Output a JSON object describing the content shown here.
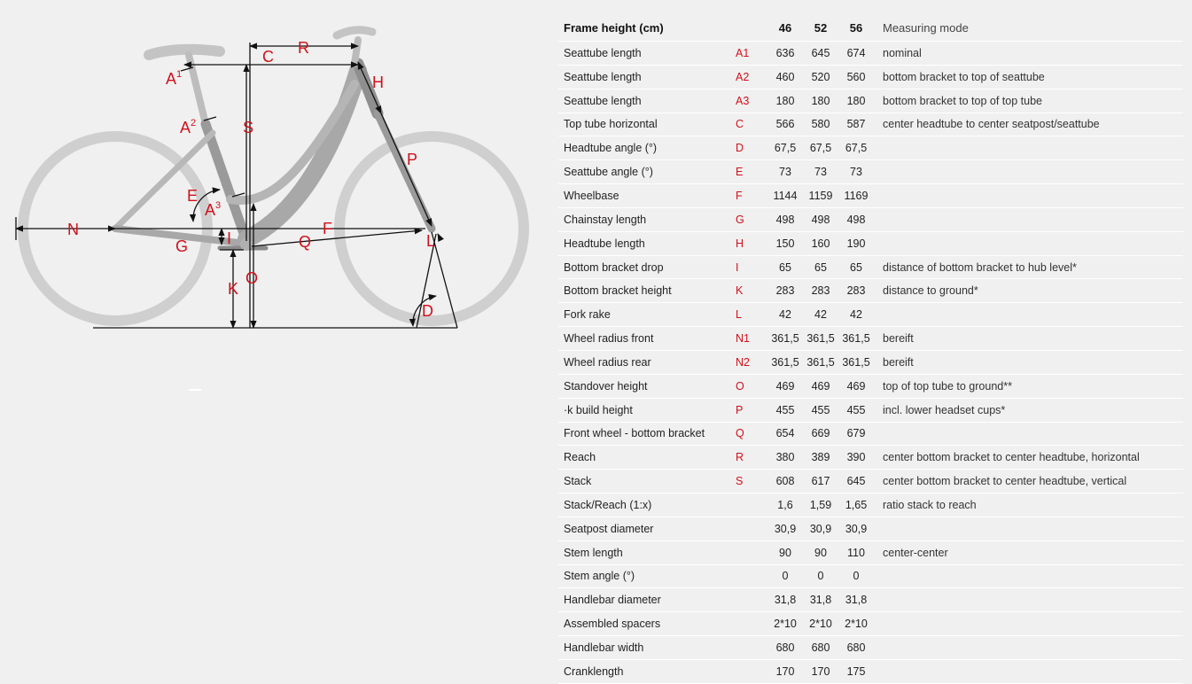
{
  "diagram": {
    "labels": {
      "A1": "A",
      "A1_sup": "1",
      "A2": "A",
      "A2_sup": "2",
      "A3": "A",
      "A3_sup": "3",
      "C": "C",
      "R": "R",
      "H": "H",
      "S": "S",
      "P": "P",
      "E": "E",
      "N": "N",
      "F": "F",
      "G": "G",
      "I": "I",
      "Q": "Q",
      "L": "L",
      "K": "K",
      "O": "O",
      "D": "D"
    },
    "colors": {
      "accent": "#d0101a",
      "frame": "#a6a6a6",
      "wheel": "#cfcfcf",
      "dim_line": "#111111"
    }
  },
  "table": {
    "header": {
      "title": "Frame height (cm)",
      "sizes": [
        "46",
        "52",
        "56"
      ],
      "mode": "Measuring mode"
    },
    "rows": [
      {
        "name": "Seattube length",
        "code": "A1",
        "v": [
          "636",
          "645",
          "674"
        ],
        "desc": "nominal"
      },
      {
        "name": "Seattube length",
        "code": "A2",
        "v": [
          "460",
          "520",
          "560"
        ],
        "desc": "bottom bracket to top of seattube"
      },
      {
        "name": "Seattube length",
        "code": "A3",
        "v": [
          "180",
          "180",
          "180"
        ],
        "desc": "bottom bracket to top of top tube"
      },
      {
        "name": "Top tube horizontal",
        "code": "C",
        "v": [
          "566",
          "580",
          "587"
        ],
        "desc": "center headtube to center seatpost/seattube"
      },
      {
        "name": "Headtube angle (°)",
        "code": "D",
        "v": [
          "67,5",
          "67,5",
          "67,5"
        ],
        "desc": ""
      },
      {
        "name": "Seattube angle (°)",
        "code": "E",
        "v": [
          "73",
          "73",
          "73"
        ],
        "desc": ""
      },
      {
        "name": "Wheelbase",
        "code": "F",
        "v": [
          "1144",
          "1159",
          "1169"
        ],
        "desc": ""
      },
      {
        "name": "Chainstay length",
        "code": "G",
        "v": [
          "498",
          "498",
          "498"
        ],
        "desc": ""
      },
      {
        "name": "Headtube length",
        "code": "H",
        "v": [
          "150",
          "160",
          "190"
        ],
        "desc": ""
      },
      {
        "name": "Bottom bracket drop",
        "code": "I",
        "v": [
          "65",
          "65",
          "65"
        ],
        "desc": "distance of bottom bracket to hub level*"
      },
      {
        "name": "Bottom bracket height",
        "code": "K",
        "v": [
          "283",
          "283",
          "283"
        ],
        "desc": "distance to ground*"
      },
      {
        "name": "Fork rake",
        "code": "L",
        "v": [
          "42",
          "42",
          "42"
        ],
        "desc": ""
      },
      {
        "name": "Wheel radius front",
        "code": "N1",
        "v": [
          "361,5",
          "361,5",
          "361,5"
        ],
        "desc": "bereift"
      },
      {
        "name": "Wheel radius rear",
        "code": "N2",
        "v": [
          "361,5",
          "361,5",
          "361,5"
        ],
        "desc": "bereift"
      },
      {
        "name": "Standover height",
        "code": "O",
        "v": [
          "469",
          "469",
          "469"
        ],
        "desc": "top of top tube to ground**"
      },
      {
        "name": "   ·k build height",
        "code": "P",
        "v": [
          "455",
          "455",
          "455"
        ],
        "desc": "incl. lower headset cups*"
      },
      {
        "name": "Front wheel - bottom bracket",
        "code": "Q",
        "v": [
          "654",
          "669",
          "679"
        ],
        "desc": ""
      },
      {
        "name": "Reach",
        "code": "R",
        "v": [
          "380",
          "389",
          "390"
        ],
        "desc": "center bottom bracket to center headtube, horizontal"
      },
      {
        "name": "Stack",
        "code": "S",
        "v": [
          "608",
          "617",
          "645"
        ],
        "desc": "center bottom bracket to center headtube, vertical"
      },
      {
        "name": "Stack/Reach (1:x)",
        "code": "",
        "v": [
          "1,6",
          "1,59",
          "1,65"
        ],
        "desc": "ratio stack to reach"
      },
      {
        "name": "Seatpost diameter",
        "code": "",
        "v": [
          "30,9",
          "30,9",
          "30,9"
        ],
        "desc": ""
      },
      {
        "name": "Stem length",
        "code": "",
        "v": [
          "90",
          "90",
          "110"
        ],
        "desc": "center-center"
      },
      {
        "name": "Stem angle (°)",
        "code": "",
        "v": [
          "0",
          "0",
          "0"
        ],
        "desc": ""
      },
      {
        "name": "Handlebar diameter",
        "code": "",
        "v": [
          "31,8",
          "31,8",
          "31,8"
        ],
        "desc": ""
      },
      {
        "name": "Assembled spacers",
        "code": "",
        "v": [
          "2*10",
          "2*10",
          "2*10"
        ],
        "desc": ""
      },
      {
        "name": "Handlebar width",
        "code": "",
        "v": [
          "680",
          "680",
          "680"
        ],
        "desc": ""
      },
      {
        "name": "Cranklength",
        "code": "",
        "v": [
          "170",
          "170",
          "175"
        ],
        "desc": ""
      }
    ]
  }
}
